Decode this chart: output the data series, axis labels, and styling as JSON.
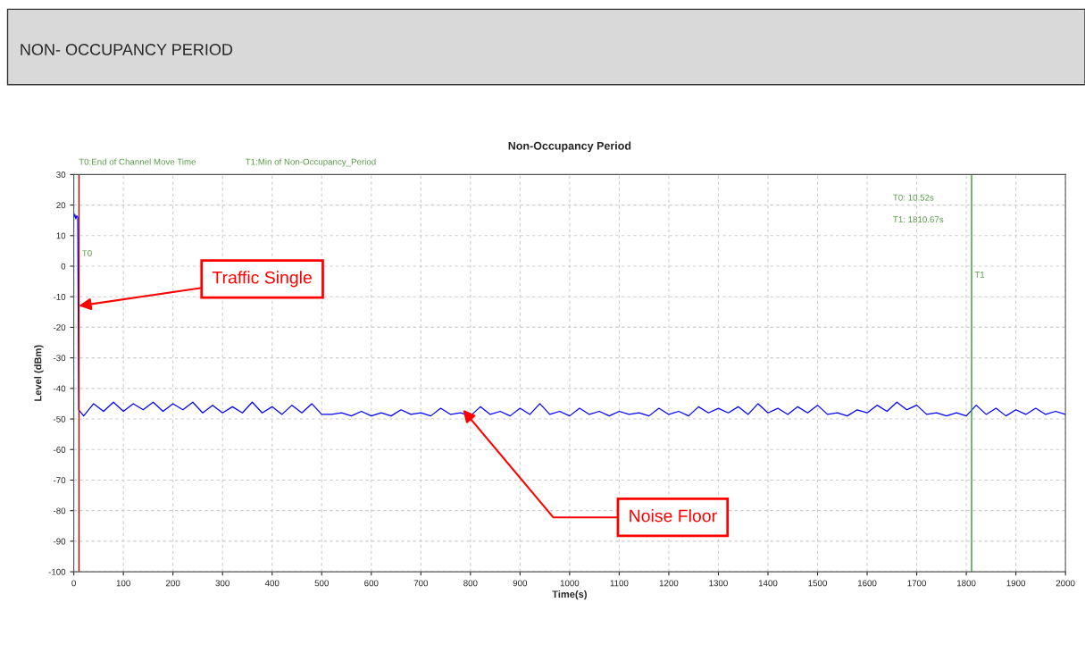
{
  "chart_data": {
    "type": "line",
    "title": "Non-Occupancy Period",
    "xlabel": "Time(s)",
    "ylabel": "Level (dBm)",
    "xlim": [
      0,
      2000
    ],
    "xticks": [
      0,
      100,
      200,
      300,
      400,
      500,
      600,
      700,
      800,
      900,
      1000,
      1100,
      1200,
      1300,
      1400,
      1500,
      1600,
      1700,
      1800,
      1900,
      2000
    ],
    "ylim": [
      -100,
      30
    ],
    "yticks": [
      -100,
      -90,
      -80,
      -70,
      -60,
      -50,
      -40,
      -30,
      -20,
      -10,
      0,
      10,
      20,
      30
    ],
    "grid": true,
    "line_style": "solid",
    "series": [
      {
        "color": "#0000ff",
        "x": [
          0,
          2,
          4,
          6,
          8,
          10,
          20,
          40,
          60,
          80,
          100,
          120,
          140,
          160,
          180,
          200,
          220,
          240,
          260,
          280,
          300,
          320,
          340,
          360,
          380,
          400,
          420,
          440,
          460,
          480,
          500,
          520,
          540,
          560,
          580,
          600,
          620,
          640,
          660,
          680,
          700,
          720,
          740,
          760,
          780,
          800,
          820,
          840,
          860,
          880,
          900,
          920,
          940,
          960,
          980,
          1000,
          1020,
          1040,
          1060,
          1080,
          1100,
          1120,
          1140,
          1160,
          1180,
          1200,
          1220,
          1240,
          1260,
          1280,
          1300,
          1320,
          1340,
          1360,
          1380,
          1400,
          1420,
          1440,
          1460,
          1480,
          1500,
          1520,
          1540,
          1560,
          1580,
          1600,
          1620,
          1640,
          1660,
          1680,
          1700,
          1720,
          1740,
          1760,
          1780,
          1800,
          1820,
          1840,
          1860,
          1880,
          1900,
          1920,
          1940,
          1960,
          1980,
          2000
        ],
        "values": [
          16,
          17,
          15.5,
          16.5,
          16,
          -47,
          -49,
          -45,
          -47.5,
          -44.5,
          -47.5,
          -45,
          -47,
          -44.5,
          -47.5,
          -45,
          -47,
          -44.5,
          -48,
          -45.5,
          -48,
          -46,
          -48,
          -44.5,
          -48,
          -46,
          -48.5,
          -45.5,
          -48,
          -45,
          -48.5,
          -48.5,
          -48,
          -49,
          -47.5,
          -49,
          -48,
          -49,
          -47,
          -48.5,
          -48,
          -49,
          -46.5,
          -48.5,
          -48,
          -49,
          -46,
          -48.5,
          -47.5,
          -49,
          -46.5,
          -48.5,
          -45,
          -48.5,
          -47.5,
          -49,
          -46.5,
          -48.5,
          -47.5,
          -49,
          -47.5,
          -48.5,
          -48,
          -49,
          -46.5,
          -48.5,
          -47.5,
          -49,
          -46,
          -48,
          -46.5,
          -48,
          -46,
          -48.5,
          -45,
          -48,
          -46.5,
          -48.5,
          -46,
          -48,
          -45.5,
          -48.5,
          -48,
          -49,
          -47,
          -48,
          -45.5,
          -47.5,
          -44.5,
          -47,
          -45.5,
          -48.5,
          -48,
          -49,
          -48,
          -49,
          -45.5,
          -48.5,
          -46.5,
          -49,
          -47,
          -48.5,
          -46.5,
          -48.5,
          -47.5,
          -48.5
        ]
      }
    ],
    "ref_lines": [
      {
        "axis": "x",
        "value": 10.52,
        "label": "T0",
        "color": "#c00000"
      },
      {
        "axis": "x",
        "value": 1810.67,
        "label": "T1",
        "color": "#339933"
      }
    ],
    "annotations": [
      "NON- OCCUPANCY PERIOD",
      "T0:End of Channel Move Time",
      "T1:Min of Non-Occupancy_Period",
      "T0: 10.52s",
      "T1: 1810.67s",
      {
        "text": "Traffic Single",
        "x": 10,
        "y": -13
      },
      {
        "text": "Noise Floor",
        "x": 785,
        "y": -47
      }
    ]
  }
}
